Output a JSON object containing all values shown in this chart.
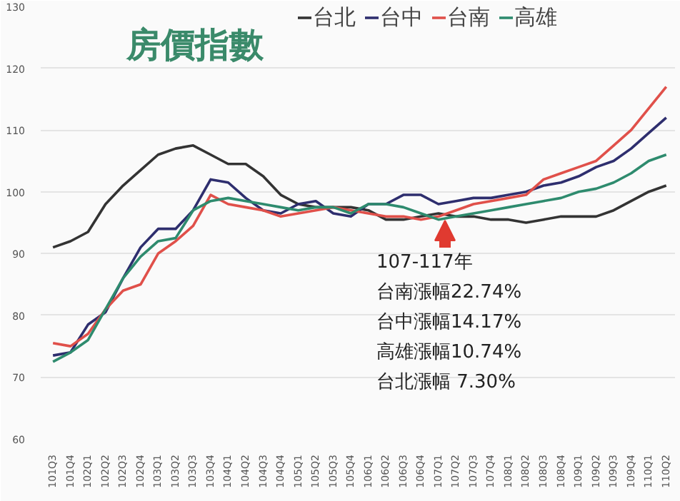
{
  "chart_data": {
    "type": "line",
    "title": "房價指數",
    "categories": [
      "101Q3",
      "101Q4",
      "102Q1",
      "102Q2",
      "102Q3",
      "102Q4",
      "103Q1",
      "103Q2",
      "103Q3",
      "103Q4",
      "104Q1",
      "104Q2",
      "104Q3",
      "104Q4",
      "105Q1",
      "105Q2",
      "105Q3",
      "105Q4",
      "106Q1",
      "106Q2",
      "106Q3",
      "106Q4",
      "107Q1",
      "107Q2",
      "107Q3",
      "107Q4",
      "108Q1",
      "108Q2",
      "108Q3",
      "108Q4",
      "109Q1",
      "109Q2",
      "109Q3",
      "109Q4",
      "110Q1",
      "110Q2"
    ],
    "series": [
      {
        "name": "台北",
        "color": "#333333",
        "values": [
          91,
          92,
          93.5,
          98,
          101,
          103.5,
          106,
          107,
          107.5,
          106,
          104.5,
          104.5,
          102.5,
          99.5,
          98,
          97.5,
          97.5,
          97.5,
          97,
          95.5,
          95.5,
          96,
          96.5,
          96,
          96,
          95.5,
          95.5,
          95,
          95.5,
          96,
          96,
          96,
          97,
          98.5,
          100,
          101
        ]
      },
      {
        "name": "台中",
        "color": "#2e2e6e",
        "values": [
          73.5,
          74,
          78.5,
          80.5,
          86,
          91,
          94,
          94,
          97,
          102,
          101.5,
          99,
          97,
          96.5,
          98,
          98.5,
          96.5,
          96,
          98,
          98,
          99.5,
          99.5,
          98,
          98.5,
          99,
          99,
          99.5,
          100,
          101,
          101.5,
          102.5,
          104,
          105,
          107,
          109.5,
          112
        ]
      },
      {
        "name": "台南",
        "color": "#e0504a",
        "values": [
          75.5,
          75,
          77,
          81,
          84,
          85,
          90,
          92,
          94.5,
          99.5,
          98,
          97.5,
          97,
          96,
          96.5,
          97,
          97.5,
          97,
          96.5,
          96,
          96,
          95.5,
          96,
          97,
          98,
          98.5,
          99,
          99.5,
          102,
          103,
          104,
          105,
          107.5,
          110,
          113.5,
          117
        ]
      },
      {
        "name": "高雄",
        "color": "#2e8b6e",
        "values": [
          72.5,
          74,
          76,
          81,
          86,
          89.5,
          92,
          92.5,
          97,
          98.5,
          99,
          98.5,
          98,
          97.5,
          97,
          97.5,
          97.5,
          96.5,
          98,
          98,
          97.5,
          96.5,
          95.5,
          96,
          96.5,
          97,
          97.5,
          98,
          98.5,
          99,
          100,
          100.5,
          101.5,
          103,
          105,
          106
        ]
      }
    ],
    "ylim": [
      60,
      130
    ],
    "yticks": [
      60,
      70,
      80,
      90,
      100,
      110,
      120,
      130
    ],
    "grid": "y",
    "legend": "top",
    "annotations": [
      "107-117年",
      "台南漲幅22.74%",
      "台中漲幅14.17%",
      "高雄漲幅10.74%",
      "台北漲幅 7.30%"
    ]
  }
}
